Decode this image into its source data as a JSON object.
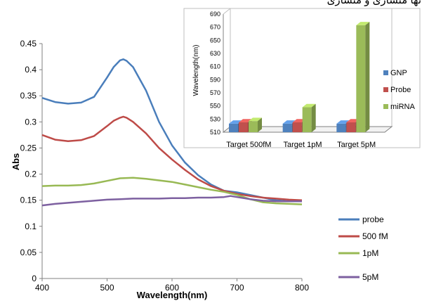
{
  "page_header_text": "نها متشاری و متشاری",
  "chart_data": [
    {
      "type": "line",
      "xlabel": "Wavelength(nm)",
      "ylabel": "Abs",
      "xlim": [
        400,
        800
      ],
      "ylim": [
        0,
        0.45
      ],
      "x_ticks": [
        "400",
        "500",
        "600",
        "700",
        "800"
      ],
      "y_ticks": [
        "0",
        "0.05",
        "0.1",
        "0.15",
        "0.2",
        "0.25",
        "0.3",
        "0.35",
        "0.4",
        "0.45"
      ],
      "grid": false,
      "legend_position": "right",
      "series": [
        {
          "name": "probe",
          "color": "#4a7ebb",
          "x": [
            400,
            420,
            440,
            460,
            480,
            500,
            510,
            520,
            525,
            530,
            540,
            560,
            580,
            600,
            620,
            640,
            660,
            680,
            700,
            720,
            740,
            760,
            780,
            800
          ],
          "y": [
            0.346,
            0.338,
            0.335,
            0.337,
            0.348,
            0.385,
            0.405,
            0.418,
            0.42,
            0.417,
            0.405,
            0.36,
            0.3,
            0.255,
            0.222,
            0.198,
            0.18,
            0.168,
            0.165,
            0.16,
            0.155,
            0.15,
            0.148,
            0.148
          ]
        },
        {
          "name": "500 fM",
          "color": "#be4b48",
          "x": [
            400,
            420,
            440,
            460,
            480,
            500,
            510,
            520,
            525,
            530,
            540,
            560,
            580,
            600,
            620,
            640,
            660,
            680,
            700,
            720,
            740,
            760,
            780,
            800
          ],
          "y": [
            0.275,
            0.266,
            0.263,
            0.265,
            0.273,
            0.292,
            0.302,
            0.308,
            0.31,
            0.308,
            0.3,
            0.278,
            0.25,
            0.228,
            0.208,
            0.19,
            0.177,
            0.168,
            0.162,
            0.158,
            0.155,
            0.153,
            0.151,
            0.15
          ]
        },
        {
          "name": "1pM",
          "color": "#98b954",
          "x": [
            400,
            420,
            440,
            460,
            480,
            500,
            520,
            540,
            560,
            580,
            600,
            620,
            640,
            660,
            680,
            700,
            720,
            740,
            760,
            780,
            800
          ],
          "y": [
            0.177,
            0.178,
            0.178,
            0.179,
            0.182,
            0.187,
            0.192,
            0.193,
            0.191,
            0.188,
            0.185,
            0.18,
            0.175,
            0.17,
            0.166,
            0.16,
            0.152,
            0.146,
            0.144,
            0.143,
            0.142
          ]
        },
        {
          "name": "5pM",
          "color": "#7d60a0",
          "x": [
            400,
            420,
            440,
            460,
            480,
            500,
            520,
            540,
            560,
            580,
            600,
            620,
            640,
            660,
            680,
            690,
            700,
            720,
            740,
            760,
            780,
            800
          ],
          "y": [
            0.14,
            0.143,
            0.145,
            0.147,
            0.149,
            0.151,
            0.152,
            0.153,
            0.153,
            0.153,
            0.154,
            0.154,
            0.155,
            0.155,
            0.156,
            0.158,
            0.156,
            0.152,
            0.149,
            0.148,
            0.148,
            0.148
          ]
        }
      ]
    },
    {
      "type": "bar",
      "ylabel": "Wavelength(nm)",
      "ylim": [
        510,
        690
      ],
      "y_ticks": [
        "510",
        "530",
        "550",
        "570",
        "590",
        "610",
        "630",
        "650",
        "670",
        "690"
      ],
      "categories": [
        "Target 500fM",
        "Target 1pM",
        "Target 5pM"
      ],
      "legend_position": "right",
      "series": [
        {
          "name": "GNP",
          "color": "#4f81bd",
          "values": [
            523,
            523,
            523
          ]
        },
        {
          "name": "Probe",
          "color": "#c0504d",
          "values": [
            525,
            525,
            525
          ]
        },
        {
          "name": "miRNA",
          "color": "#9bbb59",
          "values": [
            527,
            548,
            673
          ]
        }
      ]
    }
  ]
}
